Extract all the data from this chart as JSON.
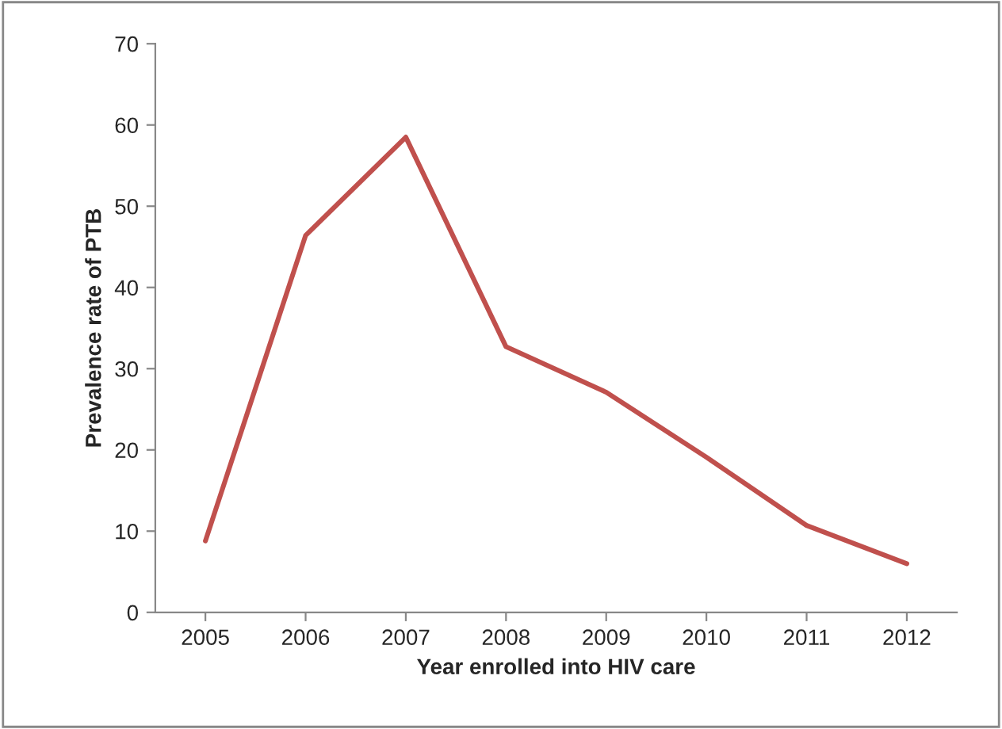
{
  "chart_data": {
    "type": "line",
    "xlabel": "Year enrolled into HIV care",
    "ylabel": "Prevalence rate of PTB",
    "categories": [
      "2005",
      "2006",
      "2007",
      "2008",
      "2009",
      "2010",
      "2011",
      "2012"
    ],
    "series": [
      {
        "color": "#c0504d",
        "values": [
          8.8,
          46.4,
          58.5,
          32.7,
          27.1,
          19.1,
          10.7,
          6.0
        ]
      }
    ],
    "ylim": [
      0,
      70
    ],
    "yticks": [
      0,
      10,
      20,
      30,
      40,
      50,
      60,
      70
    ],
    "grid": false,
    "marker": "none",
    "line_style": "solid"
  }
}
